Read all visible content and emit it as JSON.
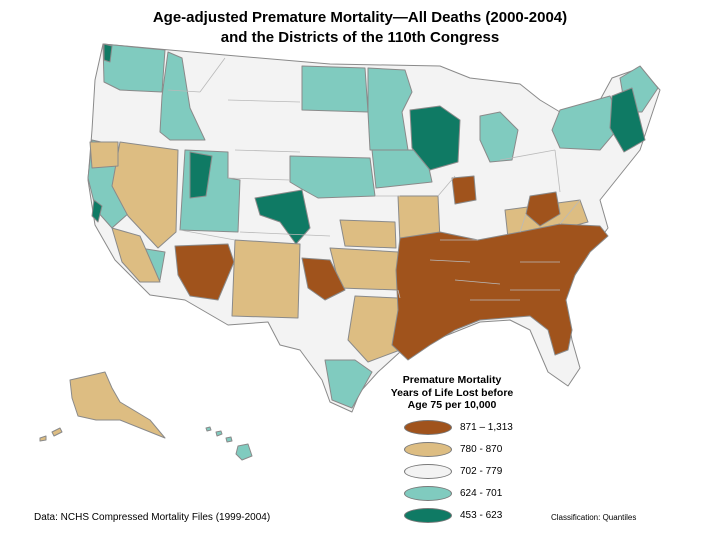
{
  "title": {
    "line1": "Age-adjusted Premature Mortality—All Deaths (2000-2004)",
    "line2": "and the Districts of the 110th Congress"
  },
  "legend": {
    "title_line1": "Premature Mortality",
    "title_line2": "Years of Life Lost before",
    "title_line3": "Age 75 per 10,000",
    "classes": [
      {
        "label": "871 – 1,313",
        "color": "#a0531c"
      },
      {
        "label": "780 - 870",
        "color": "#ddbd82"
      },
      {
        "label": "702 - 779",
        "color": "#f3f3f3"
      },
      {
        "label": "624 - 701",
        "color": "#80cbbf"
      },
      {
        "label": "453 - 623",
        "color": "#0f7a64"
      }
    ]
  },
  "source": "Data:  NCHS Compressed Mortality Files (1999-2004)",
  "classification": "Classification: Quantiles"
}
